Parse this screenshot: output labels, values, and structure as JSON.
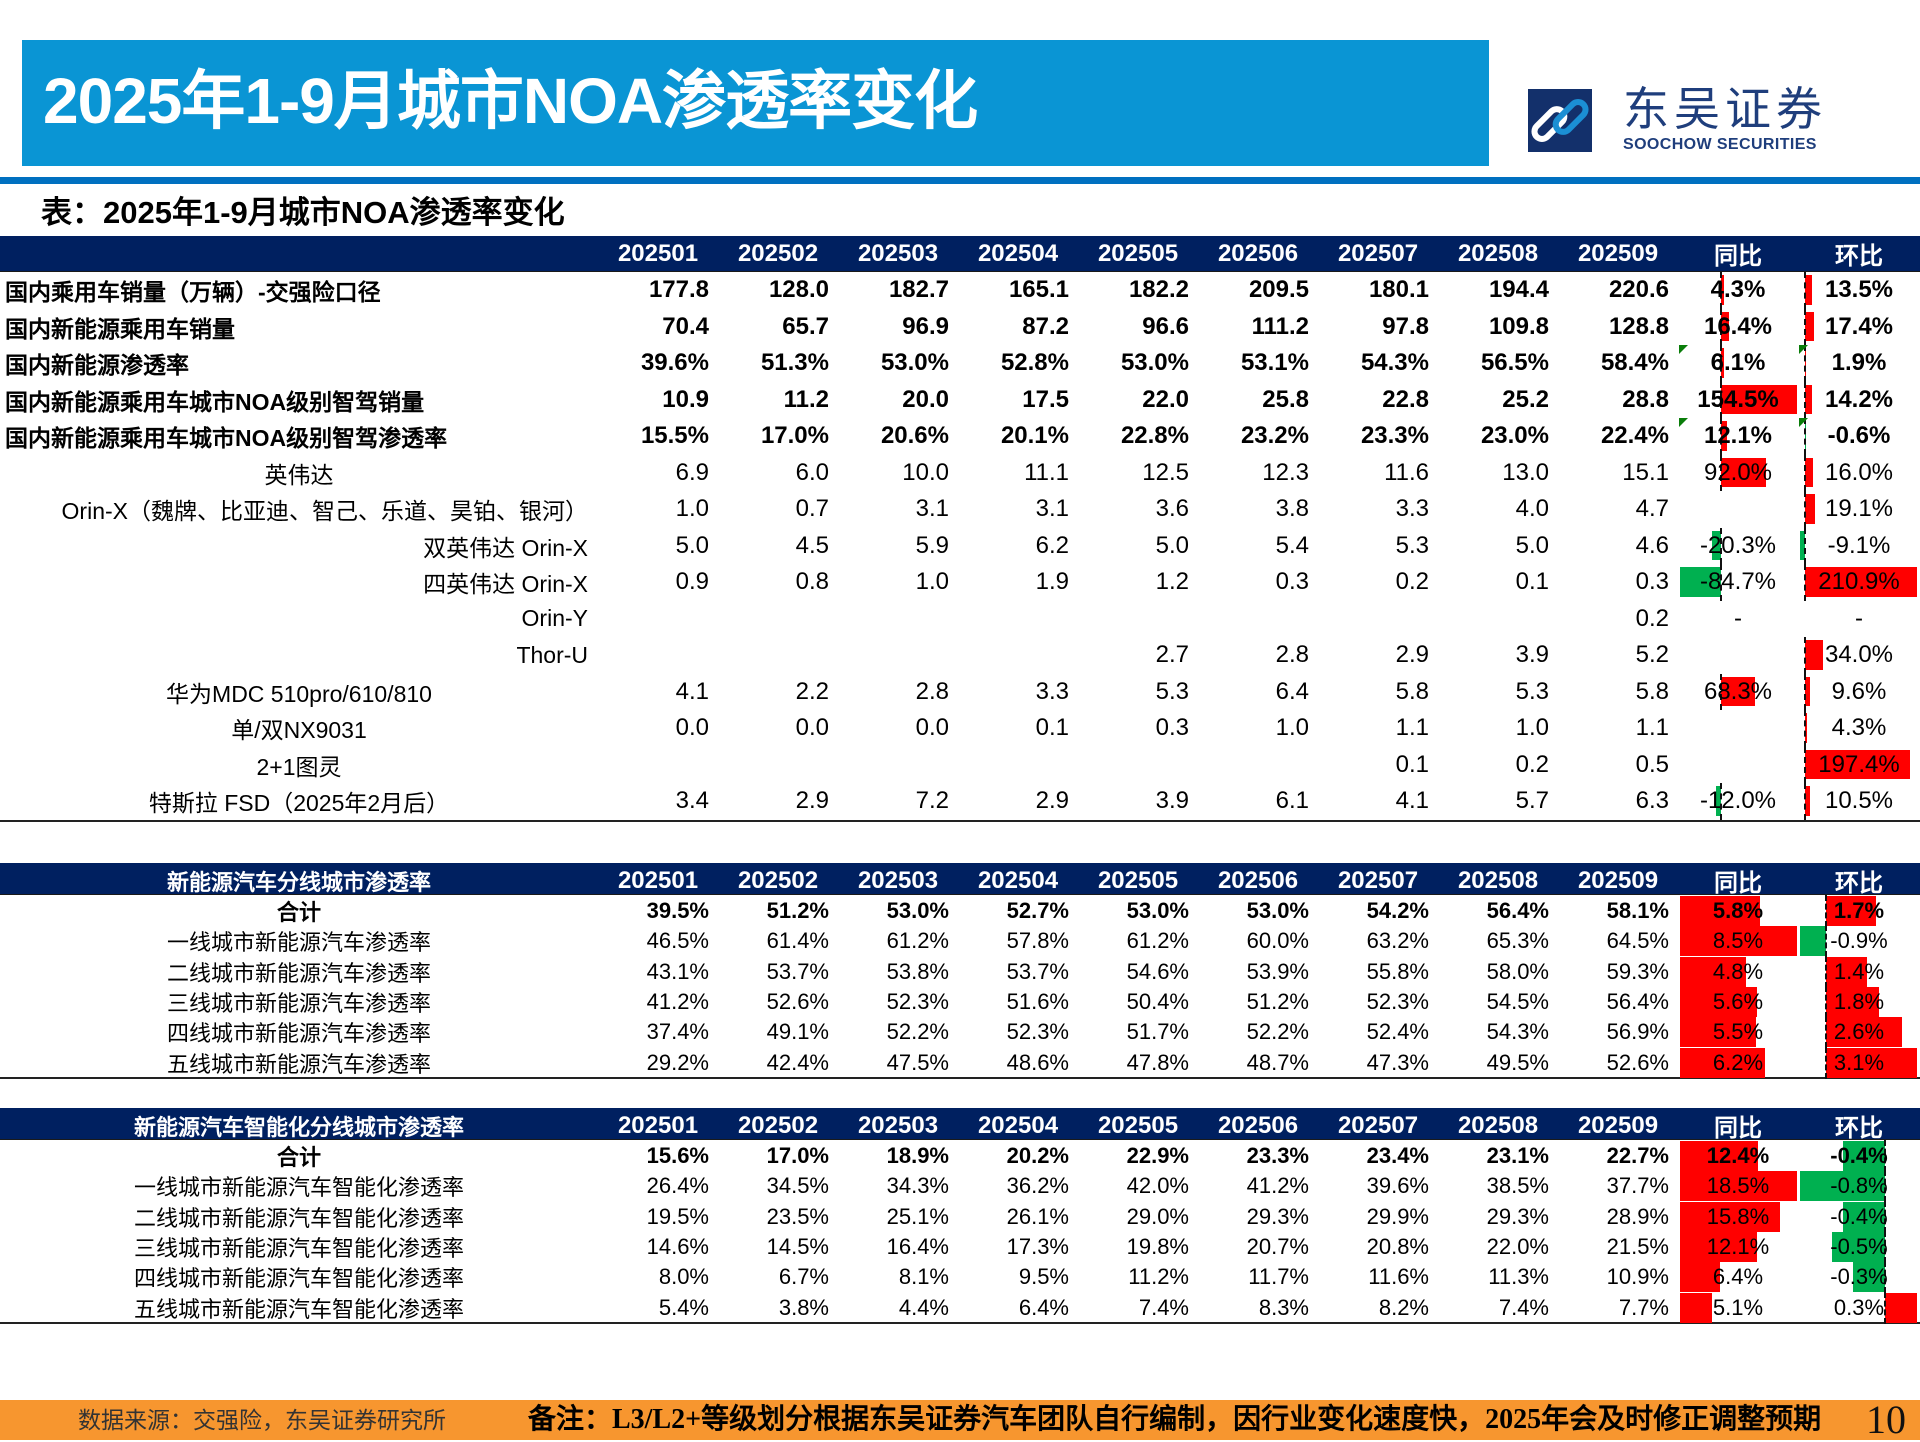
{
  "header": {
    "title": "2025年1-9月城市NOA渗透率变化",
    "logo": {
      "icon": "soochow-link-logo-icon",
      "cn": "东吴证券",
      "en": "SOOCHOW SECURITIES"
    }
  },
  "subtitle": "表：2025年1-9月城市NOA渗透率变化",
  "colors": {
    "title_bar": "#0a95d4",
    "rule": "#0070c0",
    "table_header": "#002060",
    "positive_bar": "#ff0000",
    "negative_bar": "#00b050",
    "footer": "#f7962f",
    "logo": "#1f3e7c"
  },
  "tables": [
    {
      "header_label": "",
      "columns": [
        "202501",
        "202502",
        "202503",
        "202504",
        "202505",
        "202506",
        "202507",
        "202508",
        "202509",
        "同比",
        "环比"
      ],
      "rows": [
        {
          "level": 1,
          "label": "国内乘用车销量（万辆）-交强险口径",
          "values": [
            "177.8",
            "128.0",
            "182.7",
            "165.1",
            "182.2",
            "209.5",
            "180.1",
            "194.4",
            "220.6"
          ],
          "yoy": "4.3%",
          "mom": "13.5%"
        },
        {
          "level": 1,
          "label": "国内新能源乘用车销量",
          "values": [
            "70.4",
            "65.7",
            "96.9",
            "87.2",
            "96.6",
            "111.2",
            "97.8",
            "109.8",
            "128.8"
          ],
          "yoy": "16.4%",
          "mom": "17.4%"
        },
        {
          "level": 1,
          "label": "国内新能源渗透率",
          "values": [
            "39.6%",
            "51.3%",
            "53.0%",
            "52.8%",
            "53.0%",
            "53.1%",
            "54.3%",
            "56.5%",
            "58.4%"
          ],
          "yoy": "6.1%",
          "mom": "1.9%",
          "flag": true
        },
        {
          "level": 1,
          "label": "国内新能源乘用车城市NOA级别智驾销量",
          "values": [
            "10.9",
            "11.2",
            "20.0",
            "17.5",
            "22.0",
            "25.8",
            "22.8",
            "25.2",
            "28.8"
          ],
          "yoy": "154.5%",
          "mom": "14.2%"
        },
        {
          "level": 1,
          "label": "国内新能源乘用车城市NOA级别智驾渗透率",
          "values": [
            "15.5%",
            "17.0%",
            "20.6%",
            "20.1%",
            "22.8%",
            "23.2%",
            "23.3%",
            "23.0%",
            "22.4%"
          ],
          "yoy": "12.1%",
          "mom": "-0.6%",
          "flag": true
        },
        {
          "level": 2,
          "label": "英伟达",
          "values": [
            "6.9",
            "6.0",
            "10.0",
            "11.1",
            "12.5",
            "12.3",
            "11.6",
            "13.0",
            "15.1"
          ],
          "yoy": "92.0%",
          "mom": "16.0%"
        },
        {
          "level": 3,
          "label": "Orin-X（魏牌、比亚迪、智己、乐道、昊铂、银河）",
          "values": [
            "1.0",
            "0.7",
            "3.1",
            "3.1",
            "3.6",
            "3.8",
            "3.3",
            "4.0",
            "4.7"
          ],
          "yoy": "",
          "mom": "19.1%"
        },
        {
          "level": 3,
          "label": "双英伟达 Orin-X",
          "values": [
            "5.0",
            "4.5",
            "5.9",
            "6.2",
            "5.0",
            "5.4",
            "5.3",
            "5.0",
            "4.6"
          ],
          "yoy": "-20.3%",
          "mom": "-9.1%"
        },
        {
          "level": 3,
          "label": "四英伟达 Orin-X",
          "values": [
            "0.9",
            "0.8",
            "1.0",
            "1.9",
            "1.2",
            "0.3",
            "0.2",
            "0.1",
            "0.3"
          ],
          "yoy": "-84.7%",
          "mom": "210.9%"
        },
        {
          "level": 3,
          "label": "Orin-Y",
          "values": [
            "",
            "",
            "",
            "",
            "",
            "",
            "",
            "",
            "0.2"
          ],
          "yoy": "-",
          "mom": "-"
        },
        {
          "level": 3,
          "label": "Thor-U",
          "values": [
            "",
            "",
            "",
            "",
            "2.7",
            "2.8",
            "2.9",
            "3.9",
            "5.2"
          ],
          "yoy": "",
          "mom": "34.0%"
        },
        {
          "level": 2,
          "label": "华为MDC 510pro/610/810",
          "values": [
            "4.1",
            "2.2",
            "2.8",
            "3.3",
            "5.3",
            "6.4",
            "5.8",
            "5.3",
            "5.8"
          ],
          "yoy": "68.3%",
          "mom": "9.6%"
        },
        {
          "level": 2,
          "label": "单/双NX9031",
          "values": [
            "0.0",
            "0.0",
            "0.0",
            "0.1",
            "0.3",
            "1.0",
            "1.1",
            "1.0",
            "1.1"
          ],
          "yoy": "",
          "mom": "4.3%"
        },
        {
          "level": 2,
          "label": "2+1图灵",
          "values": [
            "",
            "",
            "",
            "",
            "",
            "",
            "0.1",
            "0.2",
            "0.5"
          ],
          "yoy": "",
          "mom": "197.4%"
        },
        {
          "level": 2,
          "label": "特斯拉 FSD（2025年2月后）",
          "values": [
            "3.4",
            "2.9",
            "7.2",
            "2.9",
            "3.9",
            "6.1",
            "4.1",
            "5.7",
            "6.3"
          ],
          "yoy": "-12.0%",
          "mom": "10.5%"
        }
      ]
    },
    {
      "header_label": "新能源汽车分线城市渗透率",
      "columns": [
        "202501",
        "202502",
        "202503",
        "202504",
        "202505",
        "202506",
        "202507",
        "202508",
        "202509",
        "同比",
        "环比"
      ],
      "rows": [
        {
          "level": 0,
          "label": "合计",
          "values": [
            "39.5%",
            "51.2%",
            "53.0%",
            "52.7%",
            "53.0%",
            "53.0%",
            "54.2%",
            "56.4%",
            "58.1%"
          ],
          "yoy": "5.8%",
          "mom": "1.7%"
        },
        {
          "level": 2,
          "label": "一线城市新能源汽车渗透率",
          "values": [
            "46.5%",
            "61.4%",
            "61.2%",
            "57.8%",
            "61.2%",
            "60.0%",
            "63.2%",
            "65.3%",
            "64.5%"
          ],
          "yoy": "8.5%",
          "mom": "-0.9%"
        },
        {
          "level": 2,
          "label": "二线城市新能源汽车渗透率",
          "values": [
            "43.1%",
            "53.7%",
            "53.8%",
            "53.7%",
            "54.6%",
            "53.9%",
            "55.8%",
            "58.0%",
            "59.3%"
          ],
          "yoy": "4.8%",
          "mom": "1.4%"
        },
        {
          "level": 2,
          "label": "三线城市新能源汽车渗透率",
          "values": [
            "41.2%",
            "52.6%",
            "52.3%",
            "51.6%",
            "50.4%",
            "51.2%",
            "52.3%",
            "54.5%",
            "56.4%"
          ],
          "yoy": "5.6%",
          "mom": "1.8%"
        },
        {
          "level": 2,
          "label": "四线城市新能源汽车渗透率",
          "values": [
            "37.4%",
            "49.1%",
            "52.2%",
            "52.3%",
            "51.7%",
            "52.2%",
            "52.4%",
            "54.3%",
            "56.9%"
          ],
          "yoy": "5.5%",
          "mom": "2.6%"
        },
        {
          "level": 2,
          "label": "五线城市新能源汽车渗透率",
          "values": [
            "29.2%",
            "42.4%",
            "47.5%",
            "48.6%",
            "47.8%",
            "48.7%",
            "47.3%",
            "49.5%",
            "52.6%"
          ],
          "yoy": "6.2%",
          "mom": "3.1%"
        }
      ]
    },
    {
      "header_label": "新能源汽车智能化分线城市渗透率",
      "columns": [
        "202501",
        "202502",
        "202503",
        "202504",
        "202505",
        "202506",
        "202507",
        "202508",
        "202509",
        "同比",
        "环比"
      ],
      "rows": [
        {
          "level": 0,
          "label": "合计",
          "values": [
            "15.6%",
            "17.0%",
            "18.9%",
            "20.2%",
            "22.9%",
            "23.3%",
            "23.4%",
            "23.1%",
            "22.7%"
          ],
          "yoy": "12.4%",
          "mom": "-0.4%"
        },
        {
          "level": 2,
          "label": "一线城市新能源汽车智能化渗透率",
          "values": [
            "26.4%",
            "34.5%",
            "34.3%",
            "36.2%",
            "42.0%",
            "41.2%",
            "39.6%",
            "38.5%",
            "37.7%"
          ],
          "yoy": "18.5%",
          "mom": "-0.8%"
        },
        {
          "level": 2,
          "label": "二线城市新能源汽车智能化渗透率",
          "values": [
            "19.5%",
            "23.5%",
            "25.1%",
            "26.1%",
            "29.0%",
            "29.3%",
            "29.9%",
            "29.3%",
            "28.9%"
          ],
          "yoy": "15.8%",
          "mom": "-0.4%"
        },
        {
          "level": 2,
          "label": "三线城市新能源汽车智能化渗透率",
          "values": [
            "14.6%",
            "14.5%",
            "16.4%",
            "17.3%",
            "19.8%",
            "20.7%",
            "20.8%",
            "22.0%",
            "21.5%"
          ],
          "yoy": "12.1%",
          "mom": "-0.5%"
        },
        {
          "level": 2,
          "label": "四线城市新能源汽车智能化渗透率",
          "values": [
            "8.0%",
            "6.7%",
            "8.1%",
            "9.5%",
            "11.2%",
            "11.7%",
            "11.6%",
            "11.3%",
            "10.9%"
          ],
          "yoy": "6.4%",
          "mom": "-0.3%"
        },
        {
          "level": 2,
          "label": "五线城市新能源汽车智能化渗透率",
          "values": [
            "5.4%",
            "3.8%",
            "4.4%",
            "6.4%",
            "7.4%",
            "8.3%",
            "8.2%",
            "7.4%",
            "7.7%"
          ],
          "yoy": "5.1%",
          "mom": "0.3%"
        }
      ]
    }
  ],
  "footer": {
    "source": "数据来源：交强险，东吴证券研究所",
    "note": "备注：L3/L2+等级划分根据东吴证券汽车团队自行编制，因行业变化速度快，2025年会及时修正调整预期",
    "page": "10"
  }
}
